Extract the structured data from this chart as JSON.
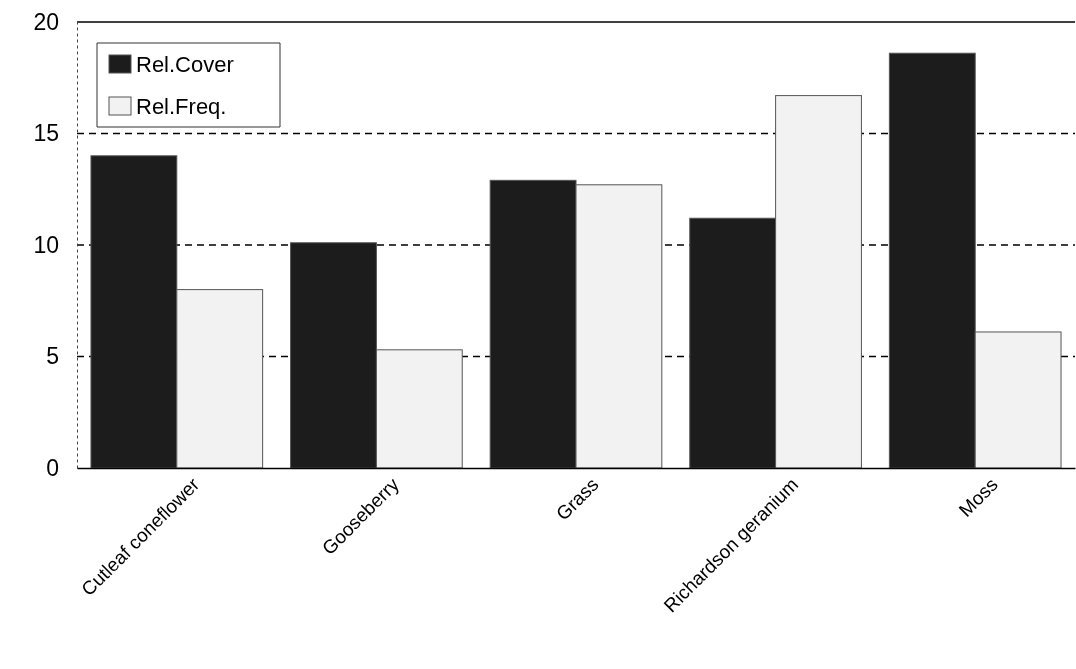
{
  "chart_data": {
    "type": "bar",
    "categories": [
      "Cutleaf coneflower",
      "Gooseberry",
      "Grass",
      "Richardson geranium",
      "Moss"
    ],
    "series": [
      {
        "name": "Rel.Cover",
        "color": "#1c1c1c",
        "values": [
          14.0,
          10.1,
          12.9,
          11.2,
          18.6
        ]
      },
      {
        "name": "Rel.Freq.",
        "color": "#f2f2f2",
        "values": [
          8.0,
          5.3,
          12.7,
          16.7,
          6.1
        ]
      }
    ],
    "ylim": [
      0,
      20
    ],
    "yticks": [
      0,
      5,
      10,
      15,
      20
    ],
    "grid": "y",
    "legend": "top left"
  }
}
